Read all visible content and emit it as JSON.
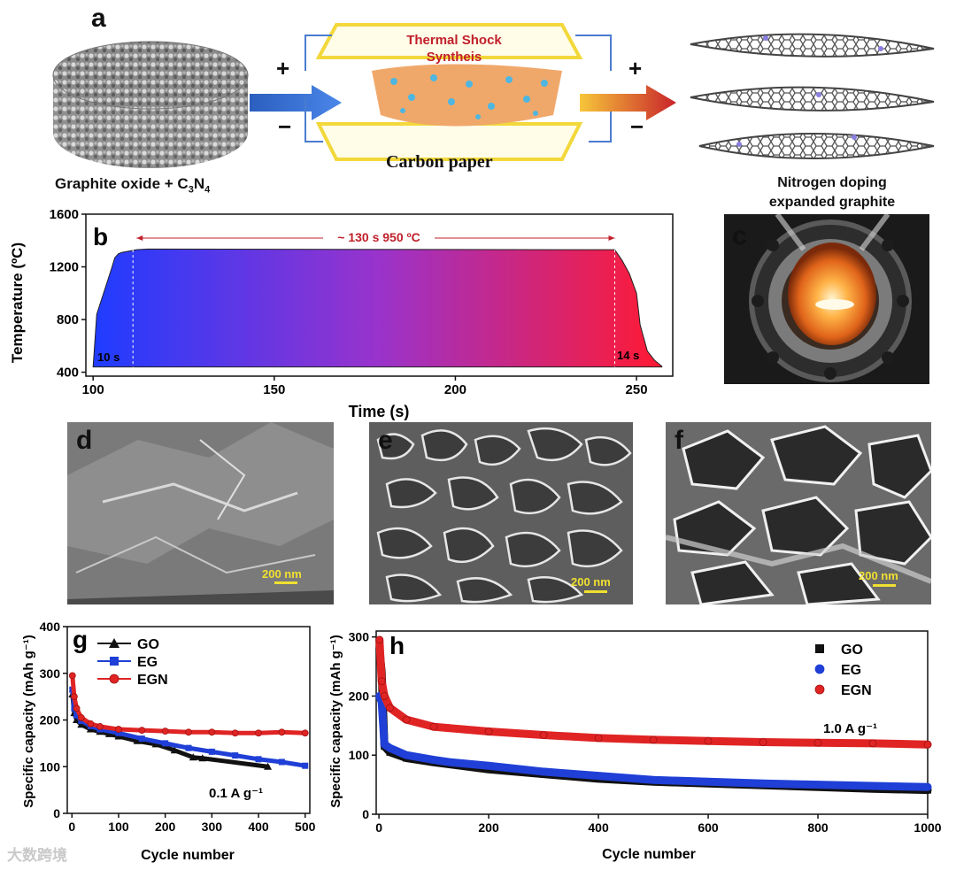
{
  "panel_a": {
    "label": "a",
    "left_caption_main": "Graphite oxide + C",
    "left_caption_sub1": "3",
    "left_caption_n": "N",
    "left_caption_sub2": "4",
    "device_title_line1": "Thermal Shock",
    "device_title_line2": "Syntheis",
    "device_caption": "Carbon paper",
    "plus_sign": "+",
    "minus_sign": "−",
    "right_caption_line1": "Nitrogen doping",
    "right_caption_line2": "expanded graphite"
  },
  "panel_c": {
    "label": "c"
  },
  "panel_d": {
    "label": "d",
    "scale": "200 nm"
  },
  "panel_e": {
    "label": "e",
    "scale": "200 nm"
  },
  "panel_f": {
    "label": "f",
    "scale": "200 nm"
  },
  "watermark": "大数跨境",
  "chart_data": [
    {
      "id": "b",
      "type": "area",
      "label": "b",
      "xlabel": "Time (s)",
      "ylabel": "Temperature (ºC)",
      "xlim": [
        98,
        260
      ],
      "ylim": [
        370,
        1600
      ],
      "xticks": [
        100,
        150,
        200,
        250
      ],
      "yticks": [
        400,
        800,
        1200,
        1600
      ],
      "x": [
        100,
        101,
        103,
        105,
        106,
        107,
        108,
        110,
        112,
        115,
        244,
        246,
        248,
        250,
        251,
        253,
        255,
        257
      ],
      "y": [
        440,
        840,
        1010,
        1180,
        1270,
        1300,
        1310,
        1320,
        1330,
        1335,
        1330,
        1250,
        1150,
        1000,
        760,
        560,
        490,
        445
      ],
      "annotation_top": "~ 130 s 950 ºC",
      "annotation_left": "10 s",
      "annotation_right": "14 s"
    },
    {
      "id": "g",
      "type": "line",
      "label": "g",
      "xlabel": "Cycle number",
      "ylabel": "Specific capacity (mAh g⁻¹)",
      "xlim": [
        -10,
        510
      ],
      "ylim": [
        0,
        400
      ],
      "xticks": [
        0,
        100,
        200,
        300,
        400,
        500
      ],
      "yticks": [
        0,
        100,
        200,
        300,
        400
      ],
      "rate_label": "0.1 A g⁻¹",
      "series": [
        {
          "name": "GO",
          "color": "#111111",
          "marker": "triangle",
          "x": [
            1,
            5,
            10,
            20,
            40,
            60,
            80,
            100,
            140,
            180,
            220,
            260,
            280,
            420
          ],
          "y": [
            255,
            215,
            200,
            190,
            180,
            175,
            170,
            165,
            155,
            148,
            135,
            120,
            118,
            100
          ]
        },
        {
          "name": "EG",
          "color": "#1f3fd6",
          "marker": "square",
          "x": [
            1,
            5,
            10,
            20,
            40,
            60,
            100,
            150,
            200,
            250,
            300,
            350,
            400,
            450,
            500
          ],
          "y": [
            265,
            225,
            210,
            198,
            187,
            180,
            172,
            160,
            150,
            140,
            132,
            124,
            116,
            110,
            102
          ]
        },
        {
          "name": "EGN",
          "color": "#e02424",
          "marker": "circle",
          "x": [
            1,
            5,
            10,
            20,
            40,
            60,
            100,
            150,
            200,
            250,
            300,
            350,
            400,
            450,
            500
          ],
          "y": [
            295,
            250,
            225,
            205,
            192,
            186,
            180,
            178,
            176,
            174,
            174,
            172,
            172,
            174,
            172
          ]
        }
      ]
    },
    {
      "id": "h",
      "type": "scatter",
      "label": "h",
      "xlabel": "Cycle number",
      "ylabel": "Specific capacity (mAh g⁻¹)",
      "xlim": [
        -5,
        1000
      ],
      "ylim": [
        0,
        310
      ],
      "xticks": [
        0,
        200,
        400,
        600,
        800,
        1000
      ],
      "yticks": [
        0,
        100,
        200,
        300
      ],
      "rate_label": "1.0 A g⁻¹",
      "series": [
        {
          "name": "GO",
          "color": "#111111",
          "marker": "square",
          "x": [
            1,
            5,
            10,
            20,
            50,
            100,
            200,
            300,
            400,
            500,
            600,
            700,
            800,
            900,
            1000
          ],
          "y": [
            280,
            240,
            115,
            105,
            95,
            88,
            76,
            68,
            60,
            55,
            52,
            49,
            46,
            43,
            41
          ]
        },
        {
          "name": "EG",
          "color": "#1f3fd6",
          "marker": "circle",
          "x": [
            1,
            5,
            10,
            20,
            50,
            100,
            130,
            200,
            300,
            400,
            500,
            600,
            700,
            800,
            900,
            1000
          ],
          "y": [
            200,
            190,
            118,
            112,
            100,
            92,
            88,
            82,
            72,
            65,
            58,
            55,
            52,
            50,
            48,
            46
          ]
        },
        {
          "name": "EGN",
          "color": "#e02424",
          "marker": "circle",
          "x": [
            1,
            5,
            10,
            20,
            50,
            100,
            200,
            300,
            400,
            500,
            600,
            700,
            800,
            900,
            1000
          ],
          "y": [
            295,
            225,
            200,
            180,
            160,
            148,
            140,
            134,
            129,
            126,
            124,
            122,
            121,
            120,
            118
          ]
        }
      ]
    }
  ]
}
